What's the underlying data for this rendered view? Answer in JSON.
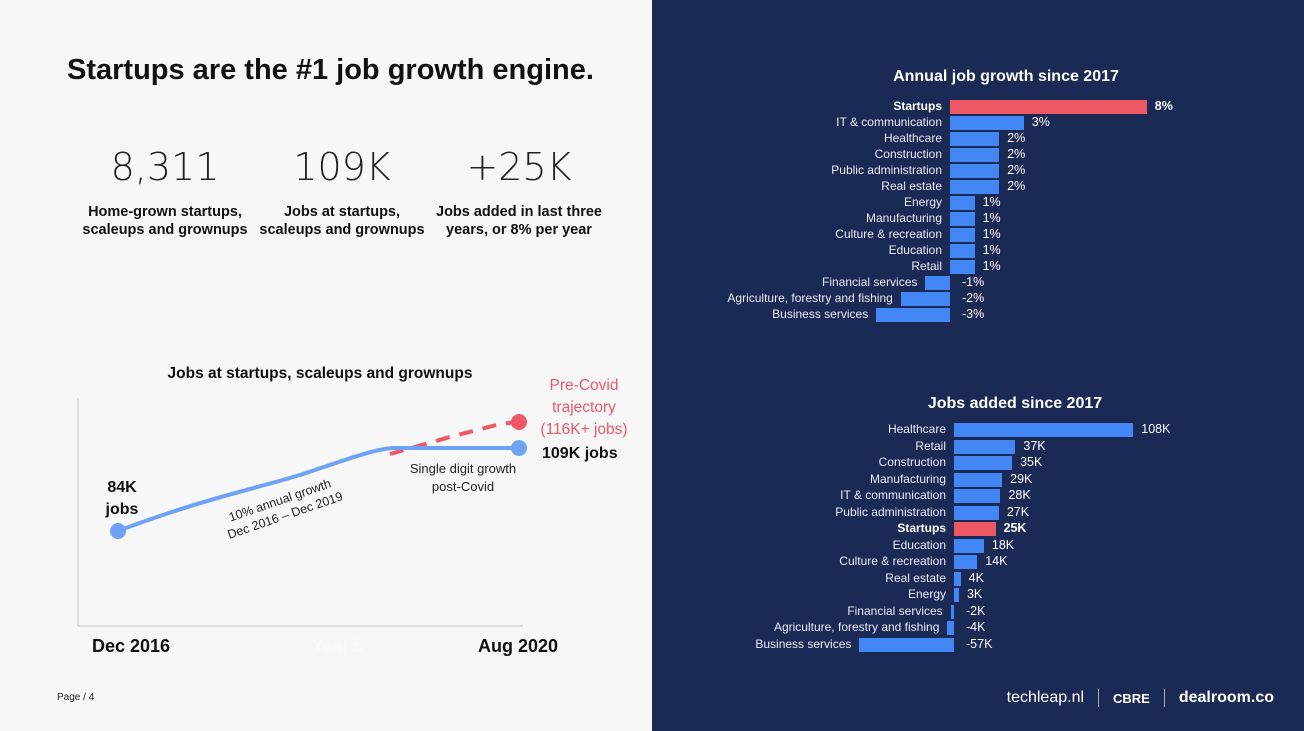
{
  "title": "Startups are the #1  job growth engine.",
  "stats": [
    {
      "value": "8,311",
      "label": "Home-grown startups, scaleups and grownups"
    },
    {
      "value": "109K",
      "label": "Jobs at startups, scaleups and grownups"
    },
    {
      "value": "+25K",
      "label": "Jobs added in last three years, or 8% per year"
    }
  ],
  "line_chart_annotations": {
    "start_label": "84K jobs",
    "end_label": "109K jobs",
    "precovid_label": "Pre-Covid trajectory (116K+ jobs)",
    "growth_note_1": "10% annual growth",
    "growth_note_2": "Dec 2016 – Dec 2019",
    "postcovid_note_1": "Single digit growth",
    "postcovid_note_2": "post-Covid",
    "hidden_label": "Year 5"
  },
  "page": "Page / 4",
  "footer": {
    "logos": [
      "techleap.nl",
      "CBRE",
      "dealroom.co"
    ]
  },
  "colors": {
    "background_right": "#1b2a55",
    "bar": "#4386f5",
    "highlight": "#ee5865",
    "line": "#6ea2f7"
  },
  "chart_data": [
    {
      "type": "line",
      "title": "Jobs at startups, scaleups and grownups",
      "x": [
        "Dec 2016",
        "Dec 2019",
        "Aug 2020"
      ],
      "series": [
        {
          "values": [
            84,
            105,
            109
          ],
          "unit": "K jobs"
        },
        {
          "name": "Pre-Covid trajectory",
          "values": [
            null,
            105,
            116
          ],
          "style": "dashed"
        }
      ]
    },
    {
      "type": "bar",
      "orientation": "horizontal",
      "title": "Annual job growth since 2017",
      "unit": "%",
      "categories": [
        "Startups",
        "IT & communication",
        "Healthcare",
        "Construction",
        "Public administration",
        "Real estate",
        "Energy",
        "Manufacturing",
        "Culture & recreation",
        "Education",
        "Retail",
        "Financial services",
        "Agriculture, forestry and fishing",
        "Business services"
      ],
      "values": [
        8,
        3,
        2,
        2,
        2,
        2,
        1,
        1,
        1,
        1,
        1,
        -1,
        -2,
        -3
      ],
      "labels": [
        "8%",
        "3%",
        "2%",
        "2%",
        "2%",
        "2%",
        "1%",
        "1%",
        "1%",
        "1%",
        "1%",
        "-1%",
        "-2%",
        "-3%"
      ],
      "highlight": "Startups"
    },
    {
      "type": "bar",
      "orientation": "horizontal",
      "title": "Jobs added since 2017",
      "unit": "K",
      "categories": [
        "Healthcare",
        "Retail",
        "Construction",
        "Manufacturing",
        "IT & communication",
        "Public administration",
        "Startups",
        "Education",
        "Culture & recreation",
        "Real estate",
        "Energy",
        "Financial services",
        "Agriculture, forestry and fishing",
        "Business services"
      ],
      "values": [
        108,
        37,
        35,
        29,
        28,
        27,
        25,
        18,
        14,
        4,
        3,
        -2,
        -4,
        -57
      ],
      "labels": [
        "108K",
        "37K",
        "35K",
        "29K",
        "28K",
        "27K",
        "25K",
        "18K",
        "14K",
        "4K",
        "3K",
        "-2K",
        "-4K",
        "-57K"
      ],
      "highlight": "Startups"
    }
  ]
}
